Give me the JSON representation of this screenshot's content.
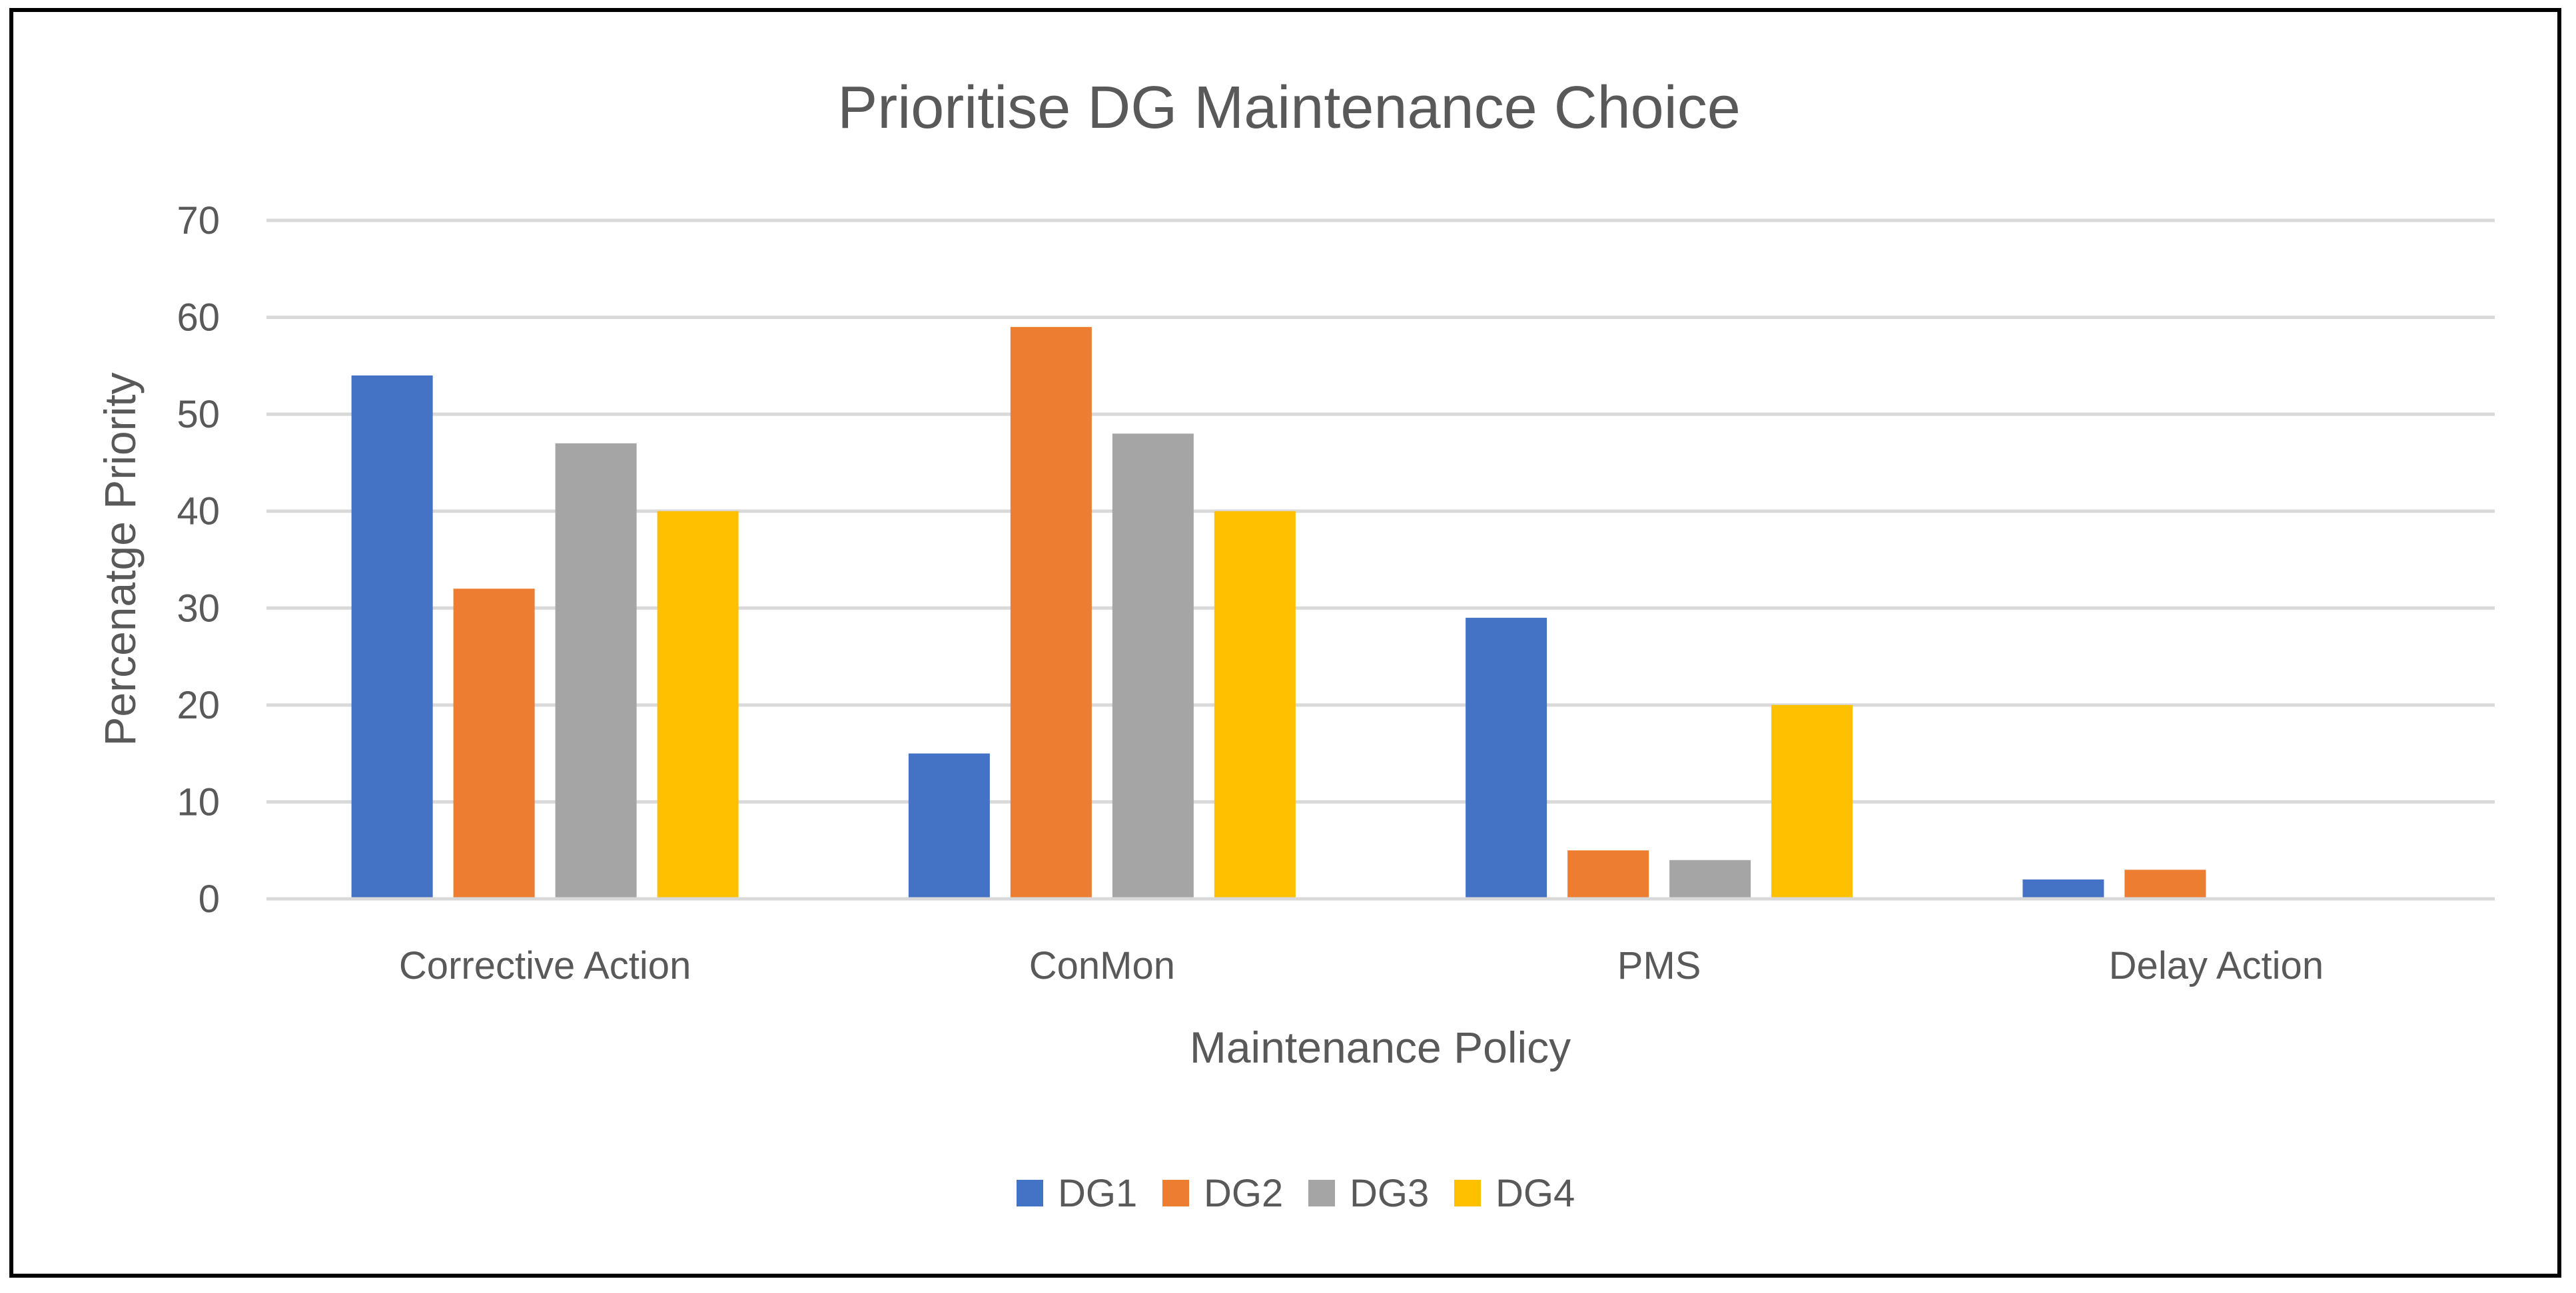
{
  "chart_data": {
    "type": "bar",
    "title": "Prioritise DG Maintenance Choice",
    "xlabel": "Maintenance Policy",
    "ylabel": "Percenatge Priority",
    "categories": [
      "Corrective Action",
      "ConMon",
      "PMS",
      "Delay Action"
    ],
    "series": [
      {
        "name": "DG1",
        "color": "#4472C4",
        "values": [
          54,
          15,
          29,
          2
        ]
      },
      {
        "name": "DG2",
        "color": "#ED7D31",
        "values": [
          32,
          59,
          5,
          3
        ]
      },
      {
        "name": "DG3",
        "color": "#A5A5A5",
        "values": [
          47,
          48,
          4,
          0
        ]
      },
      {
        "name": "DG4",
        "color": "#FFC000",
        "values": [
          40,
          40,
          20,
          0
        ]
      }
    ],
    "ylim": [
      0,
      70
    ],
    "yticks": [
      0,
      10,
      20,
      30,
      40,
      50,
      60,
      70
    ],
    "grid": true,
    "legend_position": "bottom"
  }
}
